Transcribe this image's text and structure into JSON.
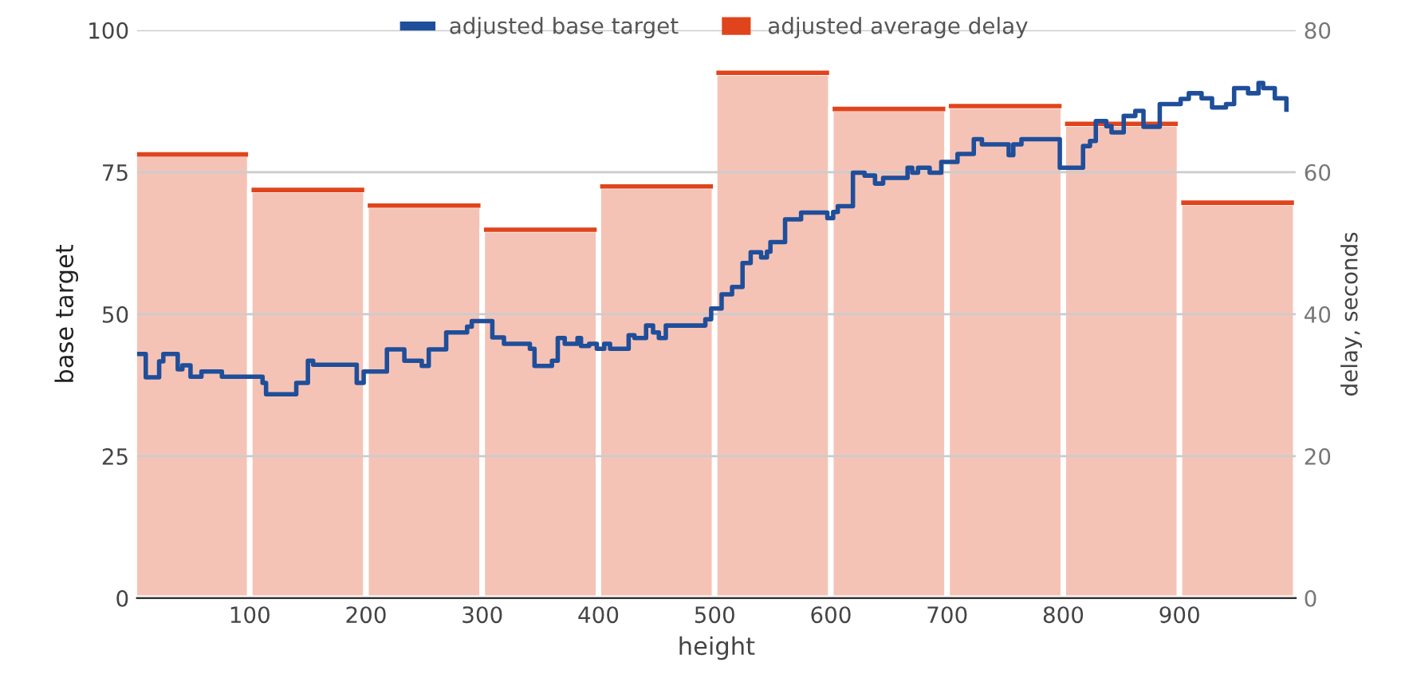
{
  "chart_data": {
    "type": "step",
    "xlabel": "height",
    "ylabel": "base target",
    "y2label": "delay, seconds",
    "xlim": [
      3,
      1000
    ],
    "xticks": [
      100,
      200,
      300,
      400,
      500,
      600,
      700,
      800,
      900
    ],
    "ylim": [
      0,
      100
    ],
    "yticks": [
      0,
      25,
      50,
      75,
      100
    ],
    "y2lim": [
      0,
      80
    ],
    "y2ticks": [
      0,
      20,
      40,
      60,
      80
    ],
    "grid": "y",
    "legend": "top",
    "series": [
      {
        "name": "adjusted average delay",
        "type": "bar",
        "axis": "y2",
        "color": "#e0441c",
        "x": [
          50,
          150,
          250,
          350,
          450,
          550,
          650,
          750,
          850,
          950
        ],
        "values": [
          62.5,
          57.5,
          55.3,
          51.9,
          58.0,
          74.0,
          68.9,
          69.3,
          66.8,
          55.7
        ]
      },
      {
        "name": "adjusted base target",
        "color": "#1f4e9a",
        "x": [
          4,
          10.5,
          17,
          22,
          25.6,
          35.6,
          38,
          42,
          46,
          49,
          56,
          58.4,
          74.4,
          76,
          104,
          111,
          114,
          135,
          140,
          146,
          150,
          154.5,
          188.6,
          192,
          198,
          214,
          218,
          230,
          233,
          245,
          248,
          254,
          266,
          269,
          284,
          287,
          291,
          303,
          308.7,
          318.7,
          337,
          341,
          345,
          360,
          365,
          371,
          382,
          385,
          392,
          398.6,
          405,
          410,
          421,
          426,
          431,
          441,
          447,
          452,
          458,
          487.7,
          492,
          497,
          506,
          515,
          524,
          531,
          538,
          540,
          545,
          548,
          560.6,
          572,
          574.4,
          593,
          597,
          602,
          606,
          619,
          629,
          638,
          645,
          666,
          670,
          675,
          685,
          695,
          709,
          723,
          730,
          753,
          757,
          764,
          797,
          817,
          823,
          828,
          837,
          841.5,
          852,
          862,
          869,
          883,
          901,
          908,
          919,
          928,
          940,
          947,
          959,
          968,
          972,
          982,
          992
        ],
        "values": [
          43,
          38.9,
          38.9,
          41.7,
          43,
          43,
          40.3,
          41,
          41,
          39,
          39,
          39.9,
          39.9,
          39,
          39,
          37.9,
          35.9,
          35.9,
          37.9,
          37.9,
          41.8,
          41.1,
          41.1,
          37.9,
          39.9,
          39.9,
          43.8,
          43.8,
          41.8,
          41.8,
          40.9,
          43.8,
          43.8,
          46.8,
          46.8,
          47.8,
          48.8,
          48.8,
          45.9,
          44.8,
          44.8,
          43.9,
          40.9,
          41.8,
          45.8,
          44.8,
          45.8,
          44.4,
          44.8,
          43.9,
          44.8,
          43.9,
          43.9,
          46.3,
          45.8,
          48,
          46.8,
          45.8,
          48,
          48,
          49.1,
          51,
          53.5,
          54.8,
          59,
          60.9,
          60.9,
          60,
          61,
          62.7,
          66.7,
          66.7,
          67.9,
          67.9,
          66.9,
          68,
          69,
          74.9,
          74.4,
          73,
          74,
          75.8,
          74.9,
          75.8,
          74.9,
          76.8,
          78.2,
          80.8,
          79.9,
          78,
          79.9,
          80.8,
          75.8,
          79.6,
          80.5,
          84,
          83.1,
          82,
          84.9,
          85.8,
          83,
          87,
          87.9,
          88.9,
          88,
          86.4,
          87,
          89.8,
          88.9,
          90.7,
          89.8,
          88,
          86
        ]
      }
    ]
  }
}
